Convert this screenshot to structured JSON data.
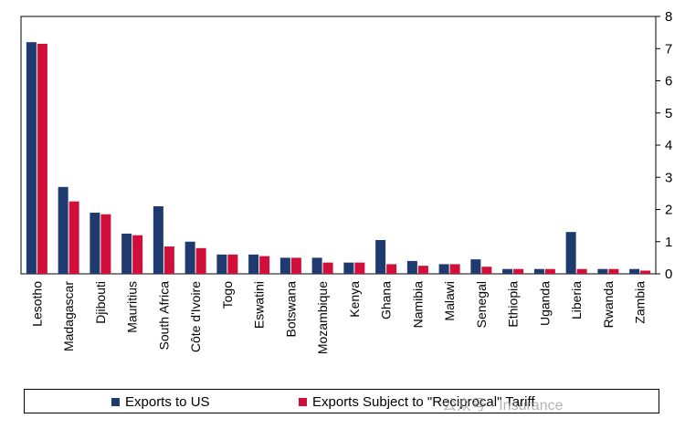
{
  "chart_data": {
    "type": "bar",
    "title": "",
    "xlabel": "",
    "ylabel": "",
    "ylim": [
      0,
      8
    ],
    "yticks": [
      0,
      1,
      2,
      3,
      4,
      5,
      6,
      7,
      8
    ],
    "y_axis_side": "right",
    "grid": false,
    "legend_position": "bottom",
    "categories": [
      "Lesotho",
      "Madagascar",
      "Djibouti",
      "Mauritius",
      "South Africa",
      "Côte d'Ivoire",
      "Togo",
      "Eswatini",
      "Botswana",
      "Mozambique",
      "Kenya",
      "Ghana",
      "Namibia",
      "Malawi",
      "Senegal",
      "Ethiopia",
      "Uganda",
      "Liberia",
      "Rwanda",
      "Zambia"
    ],
    "series": [
      {
        "name": "Exports to US",
        "color": "#1f3a6e",
        "values": [
          7.2,
          2.7,
          1.9,
          1.25,
          2.1,
          1.0,
          0.6,
          0.6,
          0.5,
          0.5,
          0.35,
          1.05,
          0.4,
          0.3,
          0.45,
          0.15,
          0.15,
          1.3,
          0.15,
          0.15
        ]
      },
      {
        "name": "Exports Subject to \"Reciprocal\" Tariff",
        "color": "#d0103a",
        "values": [
          7.15,
          2.25,
          1.85,
          1.2,
          0.85,
          0.8,
          0.6,
          0.55,
          0.5,
          0.35,
          0.35,
          0.3,
          0.25,
          0.3,
          0.22,
          0.15,
          0.15,
          0.15,
          0.15,
          0.1
        ]
      }
    ]
  },
  "legend": {
    "item1_label": "Exports to US",
    "item2_label": "Exports Subject to \"Reciprocal\" Tariff"
  },
  "watermark": {
    "text": "公众号 · Insurance"
  }
}
